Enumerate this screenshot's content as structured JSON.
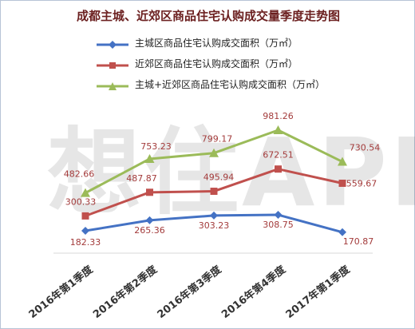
{
  "watermark": "想住APP",
  "chart_data": {
    "type": "line",
    "title": "成都主城、近郊区商品住宅认购成交量季度走势图",
    "categories": [
      "2016年第1季度",
      "2016年第2季度",
      "2016年第3季度",
      "2016年第4季度",
      "2017年第1季度"
    ],
    "series": [
      {
        "name": "主城区商品住宅认购成交面积（万㎡）",
        "values": [
          182.33,
          265.36,
          303.23,
          308.75,
          170.87
        ],
        "color": "#4472c4",
        "marker": "diamond"
      },
      {
        "name": "近郊区商品住宅认购成交面积（万㎡）",
        "values": [
          300.33,
          487.87,
          495.94,
          672.51,
          559.67
        ],
        "color": "#c0504d",
        "marker": "square"
      },
      {
        "name": "主城+近郊区商品住宅认购成交面积（万㎡）",
        "values": [
          482.66,
          753.23,
          799.17,
          981.26,
          730.54
        ],
        "color": "#9bbb59",
        "marker": "triangle"
      }
    ],
    "label_color": "#a33b3b",
    "grid": false,
    "legend_position": "top-center"
  }
}
